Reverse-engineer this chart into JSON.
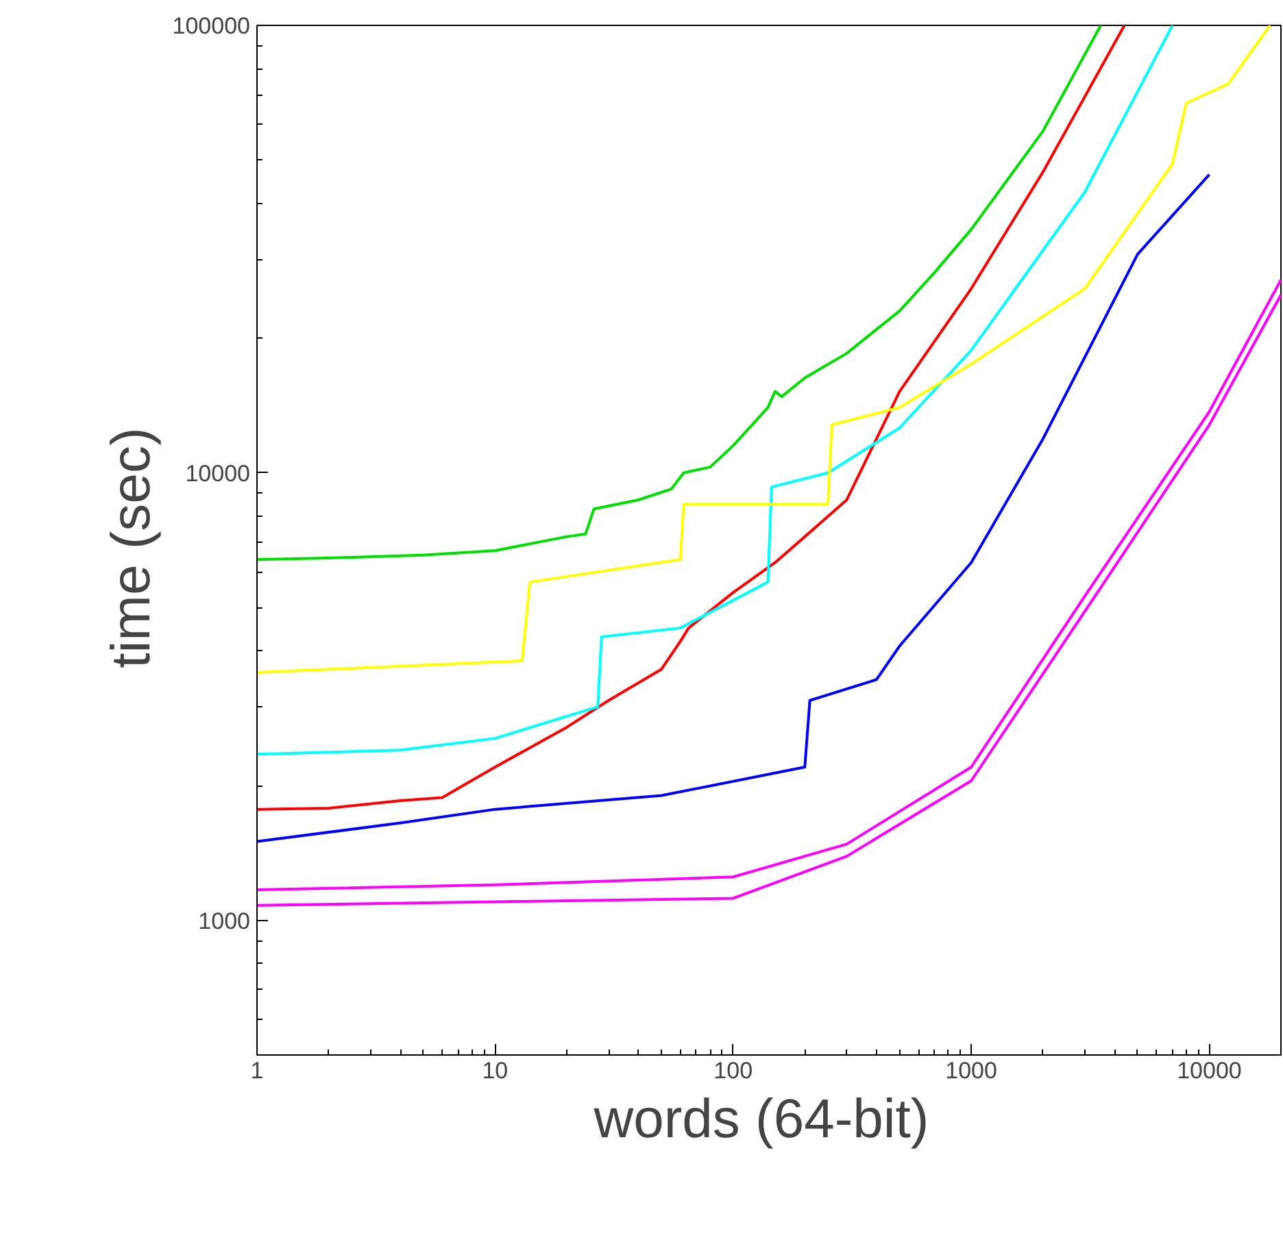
{
  "chart_data": {
    "type": "line",
    "xlabel": "words  (64-bit)",
    "ylabel": "time  (sec)",
    "log": "xy",
    "grid": false,
    "marker": "none",
    "line_style": "solid",
    "xlim": [
      1,
      20000
    ],
    "ylim": [
      500,
      100000
    ],
    "xticks": [
      1,
      10,
      100,
      1000,
      10000
    ],
    "yticks": [
      1000,
      10000,
      100000
    ],
    "series": [
      {
        "color": "#ff0000",
        "x": [
          1,
          2,
          4,
          6,
          10,
          20,
          30,
          50,
          60,
          65,
          100,
          150,
          200,
          300,
          350,
          500,
          1000,
          2000,
          4400
        ],
        "values": [
          1770,
          1780,
          1850,
          1880,
          2200,
          2700,
          3100,
          3640,
          4200,
          4500,
          5400,
          6300,
          7200,
          8700,
          10300,
          15200,
          25800,
          47000,
          100000
        ]
      },
      {
        "color": "#00e000",
        "x": [
          1,
          2,
          5,
          10,
          20,
          24,
          26,
          40,
          55,
          62,
          80,
          100,
          140,
          150,
          160,
          200,
          300,
          500,
          700,
          1000,
          2000,
          3500
        ],
        "values": [
          6400,
          6450,
          6550,
          6700,
          7200,
          7300,
          8300,
          8700,
          9200,
          10000,
          10300,
          11500,
          14000,
          15200,
          14800,
          16300,
          18500,
          23000,
          28000,
          35000,
          58000,
          100000
        ]
      },
      {
        "color": "#0000ff",
        "x": [
          1,
          4,
          10,
          50,
          200,
          210,
          400,
          500,
          1000,
          2000,
          5000,
          10000
        ],
        "values": [
          1500,
          1650,
          1770,
          1900,
          2200,
          3100,
          3450,
          4100,
          6300,
          11900,
          30800,
          46400
        ]
      },
      {
        "color": "#ff00ff",
        "x": [
          1,
          10,
          100,
          300,
          1000,
          3000,
          10000,
          20000
        ],
        "values": [
          1170,
          1200,
          1250,
          1480,
          2200,
          5300,
          13700,
          27000
        ]
      },
      {
        "color": "#ff00ff",
        "x": [
          1,
          10,
          100,
          300,
          1000,
          3000,
          10000,
          20000
        ],
        "values": [
          1080,
          1100,
          1120,
          1390,
          2050,
          4900,
          12800,
          25000
        ]
      },
      {
        "color": "#00ffff",
        "x": [
          1,
          4,
          10,
          27,
          28,
          60,
          140,
          145,
          250,
          500,
          1000,
          3000,
          7000
        ],
        "values": [
          2350,
          2400,
          2550,
          3000,
          4300,
          4500,
          5700,
          9300,
          10000,
          12600,
          18800,
          42400,
          100000
        ]
      },
      {
        "color": "#ffff00",
        "x": [
          1,
          13,
          14,
          60,
          62,
          250,
          260,
          500,
          1000,
          3000,
          7000,
          8000,
          12000,
          18000
        ],
        "values": [
          3580,
          3800,
          5700,
          6400,
          8500,
          8500,
          12800,
          14000,
          17500,
          25800,
          49000,
          67000,
          74000,
          100000
        ]
      }
    ]
  }
}
